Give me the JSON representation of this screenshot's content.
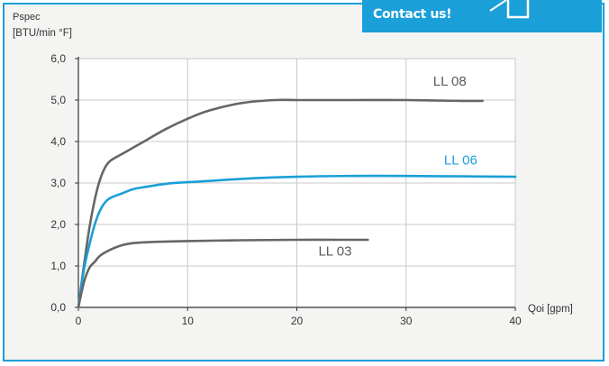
{
  "banner": {
    "label": "Contact us!",
    "icon": "window-icon",
    "color": "#1a9fd8"
  },
  "chart_data": {
    "type": "line",
    "title": "",
    "ylabel": "Pspec",
    "ylabel_unit": "[BTU/min °F]",
    "xlabel": "Qoi [gpm]",
    "xlim": [
      0,
      40
    ],
    "ylim": [
      0,
      6
    ],
    "xticks": [
      0,
      10,
      20,
      30,
      40
    ],
    "xtick_labels": [
      "0",
      "10",
      "20",
      "30",
      "40"
    ],
    "yticks": [
      0,
      1,
      2,
      3,
      4,
      5,
      6
    ],
    "ytick_labels": [
      "0,0",
      "1,0",
      "2,0",
      "3,0",
      "4,0",
      "5,0",
      "6,0"
    ],
    "grid": true,
    "legend": "none (labels placed next to curves)",
    "series": [
      {
        "name": "LL 08",
        "color": "#666666",
        "label_at": [
          34,
          5.35
        ],
        "x": [
          0,
          0.5,
          1,
          1.5,
          2,
          2.5,
          3,
          4,
          5,
          6,
          8,
          10,
          12,
          15,
          18,
          20,
          25,
          30,
          35,
          37
        ],
        "y": [
          0,
          1.0,
          1.9,
          2.6,
          3.1,
          3.4,
          3.55,
          3.7,
          3.85,
          4.0,
          4.3,
          4.55,
          4.75,
          4.93,
          5.0,
          5.0,
          5.0,
          5.0,
          4.98,
          4.98
        ]
      },
      {
        "name": "LL 06",
        "color": "#1a9fd8",
        "label_at": [
          35,
          3.45
        ],
        "x": [
          0,
          0.5,
          1,
          1.5,
          2,
          2.5,
          3,
          4,
          5,
          6,
          8,
          10,
          12,
          15,
          20,
          25,
          30,
          35,
          40
        ],
        "y": [
          0,
          0.9,
          1.5,
          2.0,
          2.35,
          2.55,
          2.65,
          2.75,
          2.85,
          2.9,
          2.98,
          3.02,
          3.05,
          3.1,
          3.15,
          3.17,
          3.17,
          3.16,
          3.15
        ]
      },
      {
        "name": "LL 03",
        "color": "#666666",
        "label_at": [
          23.5,
          1.25
        ],
        "x": [
          0,
          0.5,
          1,
          1.5,
          2,
          3,
          4,
          5,
          7,
          10,
          15,
          20,
          25,
          26.5
        ],
        "y": [
          0,
          0.6,
          0.95,
          1.1,
          1.25,
          1.4,
          1.5,
          1.55,
          1.58,
          1.6,
          1.62,
          1.63,
          1.63,
          1.63
        ]
      }
    ]
  }
}
